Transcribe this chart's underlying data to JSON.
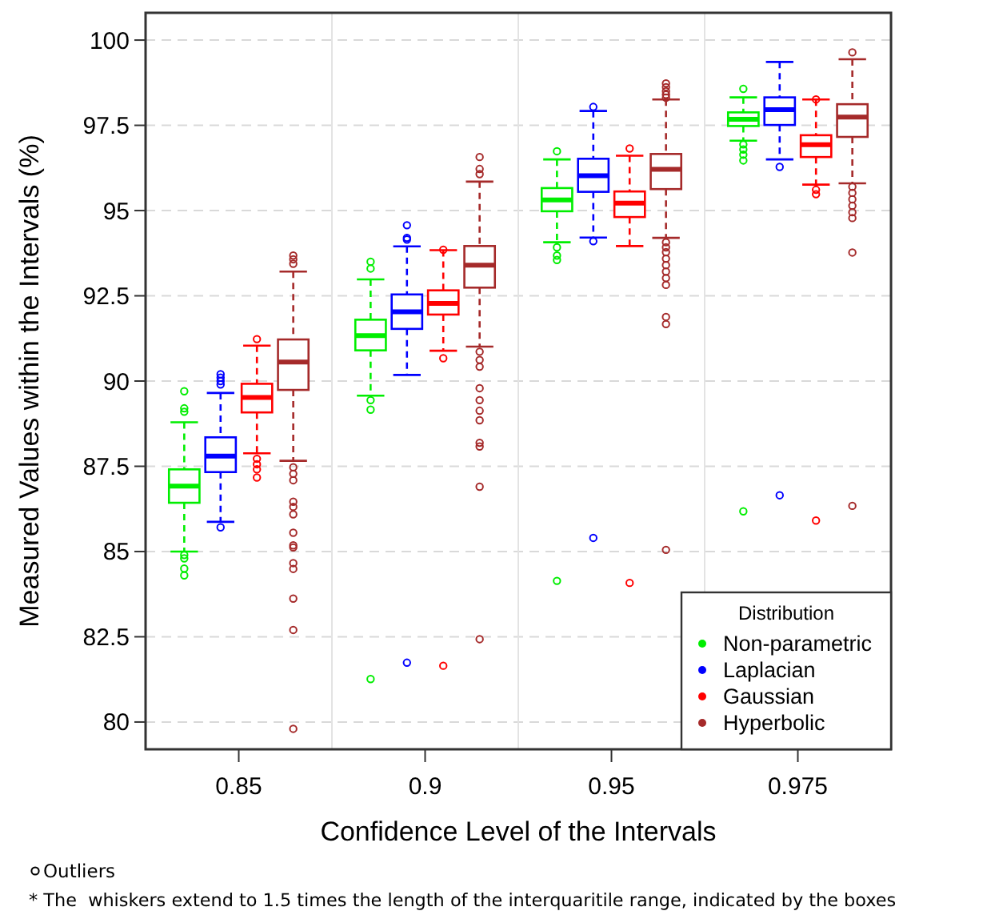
{
  "chart_data": {
    "type": "box",
    "xlabel": "Confidence Level of the Intervals",
    "ylabel": "Measured Values within the Intervals (%)",
    "categories": [
      "0.85",
      "0.9",
      "0.95",
      "0.975"
    ],
    "ylim": [
      79.2,
      100.8
    ],
    "yticks": [
      80,
      82.5,
      85,
      87.5,
      90,
      92.5,
      95,
      97.5,
      100
    ],
    "grid": true,
    "legend": "bottom right",
    "legend_title": "Distribution",
    "annotations": [
      "Outliers",
      "* The  whiskers extend to 1.5 times the length of the interquaritile range, indicated by the boxes"
    ],
    "series": [
      {
        "name": "Non-parametric",
        "color": "#00ee00",
        "boxes": [
          {
            "low": 85.0,
            "q1": 86.43,
            "median": 86.92,
            "q3": 87.41,
            "high": 88.79,
            "outliers": [
              89.7,
              89.2,
              89.1,
              84.9,
              84.8,
              84.5,
              84.3
            ]
          },
          {
            "low": 89.57,
            "q1": 90.9,
            "median": 91.33,
            "q3": 91.8,
            "high": 92.98,
            "outliers": [
              93.5,
              93.3,
              89.44,
              89.16,
              81.26
            ]
          },
          {
            "low": 94.07,
            "q1": 94.98,
            "median": 95.31,
            "q3": 95.66,
            "high": 96.5,
            "outliers": [
              96.74,
              93.92,
              93.68,
              93.55,
              84.14
            ]
          },
          {
            "low": 97.05,
            "q1": 97.48,
            "median": 97.68,
            "q3": 97.88,
            "high": 98.32,
            "outliers": [
              98.57,
              96.94,
              96.79,
              96.64,
              96.47,
              86.18
            ]
          }
        ]
      },
      {
        "name": "Laplacian",
        "color": "#0000ff",
        "boxes": [
          {
            "low": 85.87,
            "q1": 87.33,
            "median": 87.8,
            "q3": 88.35,
            "high": 89.65,
            "outliers": [
              90.2,
              90.1,
              90.0,
              89.9,
              85.71
            ]
          },
          {
            "low": 90.18,
            "q1": 91.53,
            "median": 92.03,
            "q3": 92.54,
            "high": 93.95,
            "outliers": [
              94.57,
              94.2,
              94.15,
              81.74
            ]
          },
          {
            "low": 94.21,
            "q1": 95.55,
            "median": 96.02,
            "q3": 96.52,
            "high": 97.92,
            "outliers": [
              98.04,
              94.1,
              85.4
            ]
          },
          {
            "low": 96.5,
            "q1": 97.51,
            "median": 97.96,
            "q3": 98.32,
            "high": 99.36,
            "outliers": [
              96.28,
              86.65
            ]
          }
        ]
      },
      {
        "name": "Gaussian",
        "color": "#ff0000",
        "boxes": [
          {
            "low": 87.88,
            "q1": 89.08,
            "median": 89.52,
            "q3": 89.92,
            "high": 91.04,
            "outliers": [
              91.23,
              87.72,
              87.56,
              87.41,
              87.17
            ]
          },
          {
            "low": 90.89,
            "q1": 91.95,
            "median": 92.28,
            "q3": 92.66,
            "high": 93.84,
            "outliers": [
              93.85,
              90.67,
              81.65
            ]
          },
          {
            "low": 93.96,
            "q1": 94.81,
            "median": 95.22,
            "q3": 95.56,
            "high": 96.61,
            "outliers": [
              96.82,
              84.08
            ]
          },
          {
            "low": 95.76,
            "q1": 96.57,
            "median": 96.93,
            "q3": 97.21,
            "high": 98.26,
            "outliers": [
              98.26,
              95.61,
              95.48,
              85.91
            ]
          }
        ]
      },
      {
        "name": "Hyperbolic",
        "color": "#a52a2a",
        "boxes": [
          {
            "low": 87.66,
            "q1": 89.74,
            "median": 90.56,
            "q3": 91.22,
            "high": 93.21,
            "outliers": [
              93.68,
              93.57,
              93.44,
              87.47,
              87.28,
              87.09,
              86.46,
              86.31,
              86.09,
              85.55,
              85.18,
              85.12,
              84.66,
              84.49,
              83.62,
              82.7,
              79.8
            ]
          },
          {
            "low": 91.01,
            "q1": 92.74,
            "median": 93.4,
            "q3": 93.96,
            "high": 95.85,
            "outliers": [
              96.57,
              96.22,
              96.07,
              90.86,
              90.62,
              90.42,
              89.79,
              89.44,
              89.13,
              88.85,
              88.19,
              88.08,
              86.9,
              82.43
            ]
          },
          {
            "low": 94.2,
            "q1": 95.63,
            "median": 96.21,
            "q3": 96.66,
            "high": 98.26,
            "outliers": [
              98.73,
              98.62,
              98.5,
              98.4,
              98.31,
              94.07,
              93.92,
              93.78,
              93.59,
              93.4,
              93.21,
              93.02,
              92.82,
              91.88,
              91.67,
              85.05
            ]
          },
          {
            "low": 95.8,
            "q1": 97.16,
            "median": 97.74,
            "q3": 98.12,
            "high": 99.44,
            "outliers": [
              99.64,
              95.7,
              95.52,
              95.33,
              95.14,
              94.95,
              94.78,
              93.77,
              86.34
            ]
          }
        ]
      }
    ]
  }
}
